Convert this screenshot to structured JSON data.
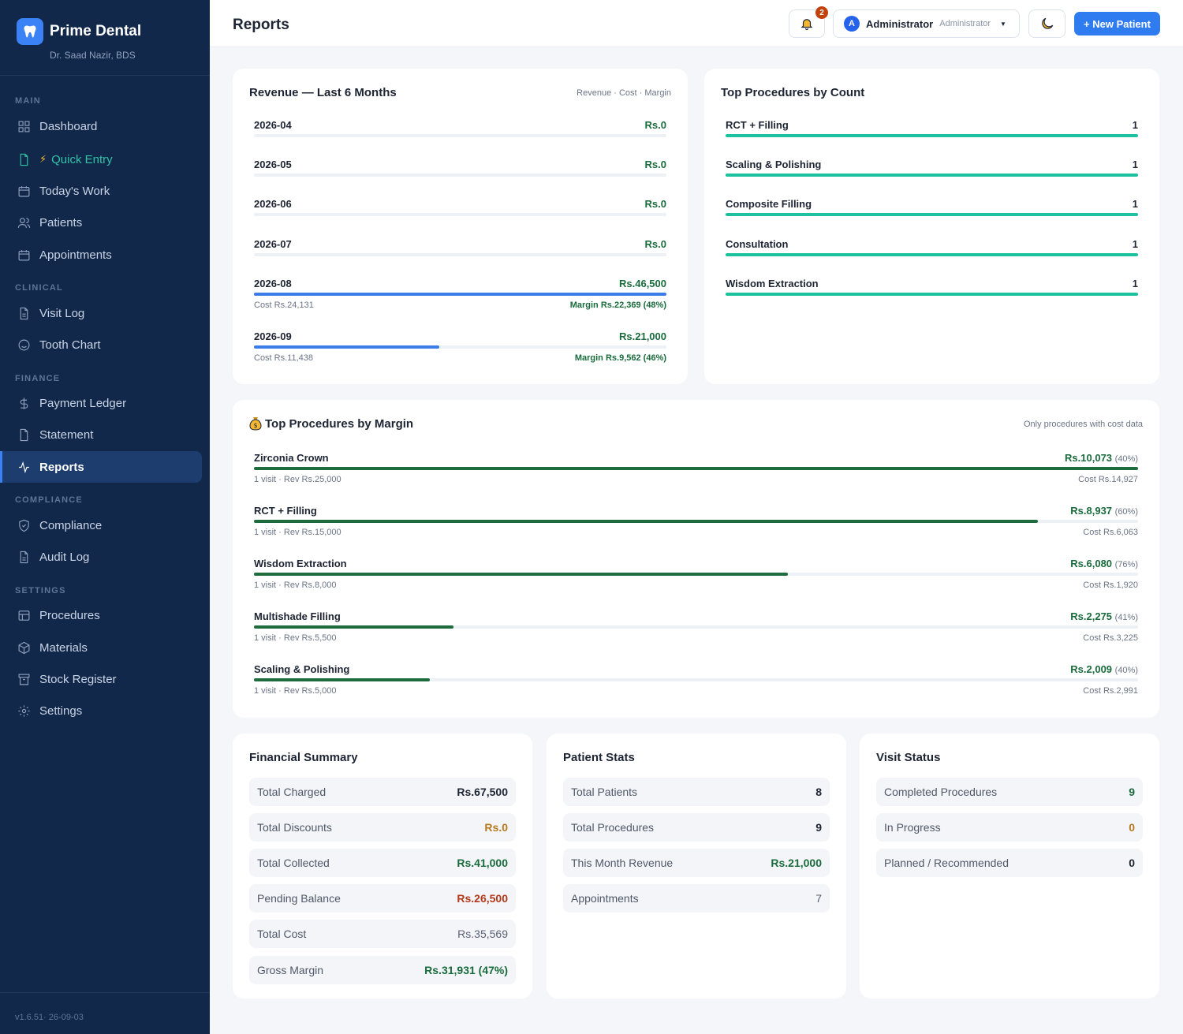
{
  "brand": {
    "name": "Prime Dental",
    "doctor": "Dr. Saad Nazir, BDS",
    "version": "v1.6.51· 26-09-03"
  },
  "sidebar": {
    "sections": [
      {
        "title": "MAIN"
      },
      {
        "title": "CLINICAL"
      },
      {
        "title": "FINANCE"
      },
      {
        "title": "COMPLIANCE"
      },
      {
        "title": "SETTINGS"
      }
    ],
    "items": [
      {
        "label": "Dashboard",
        "icon": "grid-icon"
      },
      {
        "label": "Quick Entry",
        "icon": "file-icon"
      },
      {
        "label": "Today's Work",
        "icon": "calendar-icon"
      },
      {
        "label": "Patients",
        "icon": "users-icon"
      },
      {
        "label": "Appointments",
        "icon": "calendar-icon"
      },
      {
        "label": "Visit Log",
        "icon": "document-icon"
      },
      {
        "label": "Tooth Chart",
        "icon": "smile-icon"
      },
      {
        "label": "Payment Ledger",
        "icon": "dollar-icon"
      },
      {
        "label": "Statement",
        "icon": "file-icon"
      },
      {
        "label": "Reports",
        "icon": "activity-icon",
        "active": true
      },
      {
        "label": "Compliance",
        "icon": "shield-icon"
      },
      {
        "label": "Audit Log",
        "icon": "document-icon"
      },
      {
        "label": "Procedures",
        "icon": "list-icon"
      },
      {
        "label": "Materials",
        "icon": "box-icon"
      },
      {
        "label": "Stock Register",
        "icon": "archive-icon"
      },
      {
        "label": "Settings",
        "icon": "gear-icon"
      }
    ]
  },
  "header": {
    "title": "Reports",
    "notification_count": "2",
    "user_initial": "A",
    "user_name": "Administrator",
    "user_role": "Administrator",
    "new_patient_label": "+ New Patient"
  },
  "revenue": {
    "title": "Revenue — Last 6 Months",
    "legend": "Revenue · Cost · Margin",
    "months": [
      {
        "month": "2026-04",
        "revenue": "Rs.0",
        "fraction": 0
      },
      {
        "month": "2026-05",
        "revenue": "Rs.0",
        "fraction": 0
      },
      {
        "month": "2026-06",
        "revenue": "Rs.0",
        "fraction": 0
      },
      {
        "month": "2026-07",
        "revenue": "Rs.0",
        "fraction": 0
      },
      {
        "month": "2026-08",
        "revenue": "Rs.46,500",
        "fraction": 1.0,
        "cost": "Cost Rs.24,131",
        "margin": "Margin Rs.22,369 (48%)"
      },
      {
        "month": "2026-09",
        "revenue": "Rs.21,000",
        "fraction": 0.45,
        "cost": "Cost Rs.11,438",
        "margin": "Margin Rs.9,562 (46%)"
      }
    ]
  },
  "top_count": {
    "title": "Top Procedures by Count",
    "items": [
      {
        "name": "RCT + Filling",
        "count": "1",
        "fraction": 1.0
      },
      {
        "name": "Scaling & Polishing",
        "count": "1",
        "fraction": 1.0
      },
      {
        "name": "Composite Filling",
        "count": "1",
        "fraction": 1.0
      },
      {
        "name": "Consultation",
        "count": "1",
        "fraction": 1.0
      },
      {
        "name": "Wisdom Extraction",
        "count": "1",
        "fraction": 1.0
      }
    ]
  },
  "top_margin": {
    "title": "Top Procedures by Margin",
    "note": "Only procedures with cost data",
    "items": [
      {
        "name": "Zirconia Crown",
        "margin": "Rs.10,073",
        "pct": "(40%)",
        "detail": "1 visit · Rev Rs.25,000",
        "cost": "Cost Rs.14,927",
        "fraction": 1.0
      },
      {
        "name": "RCT + Filling",
        "margin": "Rs.8,937",
        "pct": "(60%)",
        "detail": "1 visit · Rev Rs.15,000",
        "cost": "Cost Rs.6,063",
        "fraction": 0.887
      },
      {
        "name": "Wisdom Extraction",
        "margin": "Rs.6,080",
        "pct": "(76%)",
        "detail": "1 visit · Rev Rs.8,000",
        "cost": "Cost Rs.1,920",
        "fraction": 0.604
      },
      {
        "name": "Multishade Filling",
        "margin": "Rs.2,275",
        "pct": "(41%)",
        "detail": "1 visit · Rev Rs.5,500",
        "cost": "Cost Rs.3,225",
        "fraction": 0.226
      },
      {
        "name": "Scaling & Polishing",
        "margin": "Rs.2,009",
        "pct": "(40%)",
        "detail": "1 visit · Rev Rs.5,000",
        "cost": "Cost Rs.2,991",
        "fraction": 0.199
      }
    ]
  },
  "financial": {
    "title": "Financial Summary",
    "rows": [
      {
        "label": "Total Charged",
        "value": "Rs.67,500",
        "tone": "dark"
      },
      {
        "label": "Total Discounts",
        "value": "Rs.0",
        "tone": "amber"
      },
      {
        "label": "Total Collected",
        "value": "Rs.41,000",
        "tone": "green"
      },
      {
        "label": "Pending Balance",
        "value": "Rs.26,500",
        "tone": "red"
      },
      {
        "label": "Total Cost",
        "value": "Rs.35,569",
        "tone": "grey"
      },
      {
        "label": "Gross Margin",
        "value": "Rs.31,931 (47%)",
        "tone": "green"
      }
    ]
  },
  "patient_stats": {
    "title": "Patient Stats",
    "rows": [
      {
        "label": "Total Patients",
        "value": "8",
        "tone": "dark"
      },
      {
        "label": "Total Procedures",
        "value": "9",
        "tone": "dark"
      },
      {
        "label": "This Month Revenue",
        "value": "Rs.21,000",
        "tone": "green"
      },
      {
        "label": "Appointments",
        "value": "7",
        "tone": "grey"
      }
    ]
  },
  "visit_status": {
    "title": "Visit Status",
    "rows": [
      {
        "label": "Completed Procedures",
        "value": "9",
        "tone": "green"
      },
      {
        "label": "In Progress",
        "value": "0",
        "tone": "amber"
      },
      {
        "label": "Planned / Recommended",
        "value": "0",
        "tone": "dark"
      }
    ]
  },
  "colors": {
    "sidebar": "#12284b",
    "accent": "#2f7cf0",
    "teal": "#1cc2a0",
    "margin_green": "#1e6b3d"
  }
}
